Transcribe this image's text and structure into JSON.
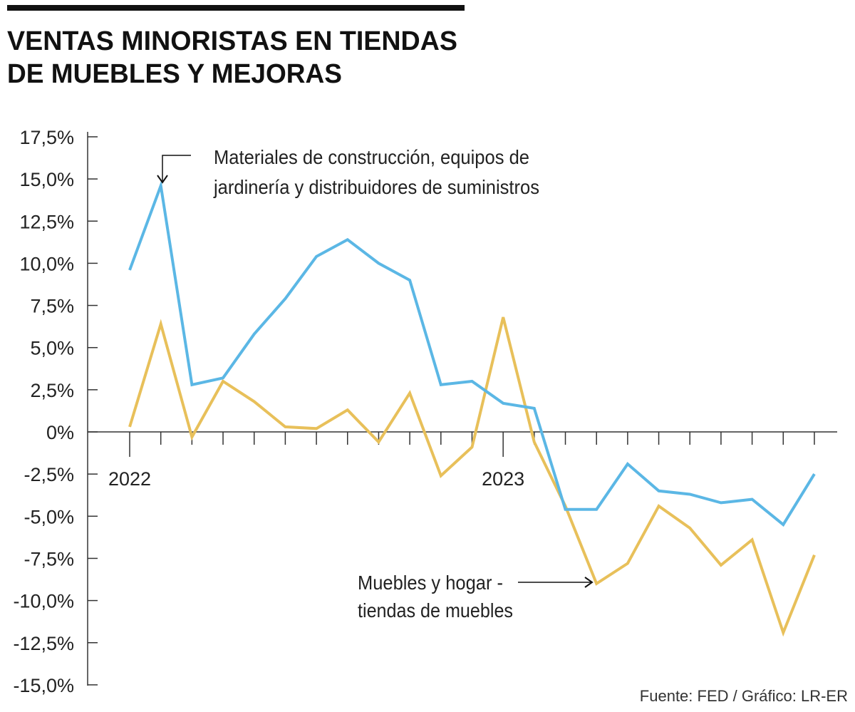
{
  "chart_data": {
    "type": "line",
    "title": "VENTAS MINORISTAS EN TIENDAS DE MUEBLES Y MEJORAS",
    "title_lines": [
      "VENTAS MINORISTAS EN TIENDAS",
      "DE MUEBLES Y MEJORAS"
    ],
    "source": "Fuente: FED / Gráfico: LR-ER",
    "xlabel": "",
    "ylabel": "",
    "ylim": [
      -15,
      17.5
    ],
    "y_ticks": [
      17.5,
      15,
      12.5,
      10,
      7.5,
      5,
      2.5,
      0,
      -2.5,
      -5,
      -7.5,
      -10,
      -12.5,
      -15
    ],
    "y_tick_labels": [
      "17,5%",
      "15,0%",
      "12,5%",
      "10,0%",
      "7,5%",
      "5,0%",
      "2,5%",
      "0%",
      "-2,5%",
      "-5,0%",
      "-7,5%",
      "-10,0%",
      "-12,5%",
      "-15,0%"
    ],
    "x_tick_labels": [
      {
        "index": 0,
        "label": "2022"
      },
      {
        "index": 12,
        "label": "2023"
      }
    ],
    "x_count": 23,
    "grid": false,
    "series": [
      {
        "name": "Materiales de construcción, equipos de jardinería y distribuidores de suministros",
        "label_lines": [
          "Materiales de construcción, equipos de",
          "jardinería y distribuidores de suministros"
        ],
        "color": "#5bb7e5",
        "values": [
          9.6,
          14.6,
          2.8,
          3.2,
          5.8,
          7.9,
          10.4,
          11.4,
          10.0,
          9.0,
          2.8,
          3.0,
          1.7,
          1.4,
          -4.6,
          -4.6,
          -1.9,
          -3.5,
          -3.7,
          -4.2,
          -4.0,
          -5.5,
          -2.5
        ]
      },
      {
        "name": "Muebles y hogar - tiendas de muebles",
        "label_lines": [
          "Muebles y hogar -",
          "tiendas de muebles"
        ],
        "color": "#e8c05a",
        "values": [
          0.3,
          6.4,
          -0.3,
          3.0,
          1.8,
          0.3,
          0.2,
          1.3,
          -0.6,
          2.3,
          -2.6,
          -0.9,
          6.8,
          -0.6,
          -4.4,
          -9.0,
          -7.8,
          -4.4,
          -5.7,
          -7.9,
          -6.4,
          -11.9,
          -7.3
        ]
      }
    ]
  }
}
